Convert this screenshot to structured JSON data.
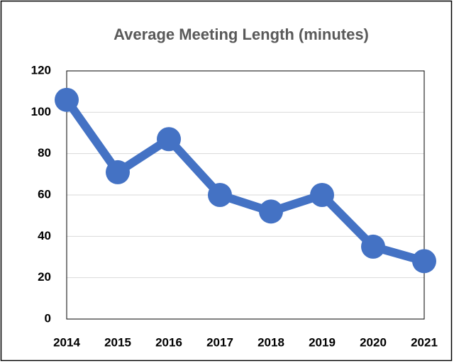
{
  "chart_data": {
    "type": "line",
    "title": "Average Meeting Length (minutes)",
    "categories": [
      "2014",
      "2015",
      "2016",
      "2017",
      "2018",
      "2019",
      "2020",
      "2021"
    ],
    "values": [
      106,
      71,
      87,
      60,
      52,
      60,
      35,
      28
    ],
    "color": "#4472c4",
    "ylim": [
      0,
      120
    ],
    "yticks": [
      0,
      20,
      40,
      60,
      80,
      100,
      120
    ],
    "grid": true
  }
}
